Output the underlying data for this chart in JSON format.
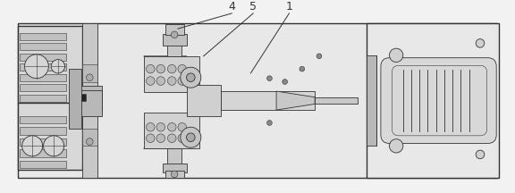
{
  "bg_color": "#f2f2f2",
  "plate_color": "#e8e8e8",
  "part_color": "#d0d0d0",
  "dark_part": "#b8b8b8",
  "edge_color": "#333333",
  "mid_color": "#c0c0c0",
  "label_1": "1",
  "label_4": "4",
  "label_5": "5",
  "lw_main": 1.0,
  "lw_detail": 0.6,
  "lw_thin": 0.4
}
